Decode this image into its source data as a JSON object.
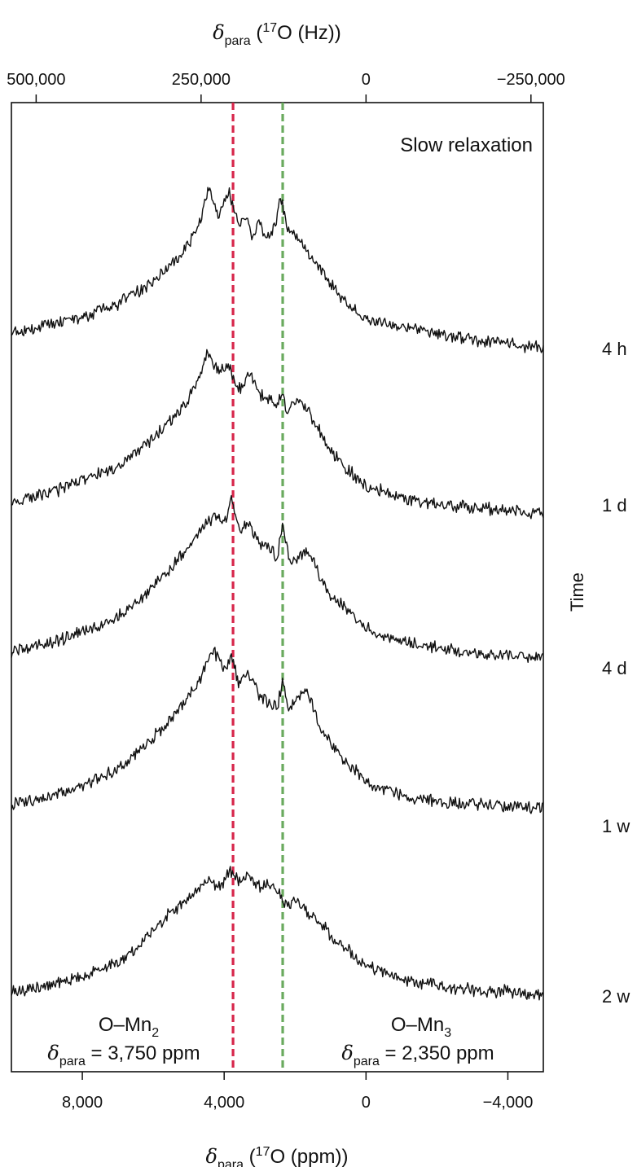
{
  "chart_data": {
    "type": "line",
    "title": "",
    "panel_label": "Slow relaxation",
    "x_bottom": {
      "label_symbol": "δ",
      "label_sub": "para",
      "label_pre": " (",
      "label_sup": "17",
      "label_post": "O (ppm))",
      "ticks": [
        8000,
        4000,
        0,
        -4000
      ],
      "tick_labels": [
        "8,000",
        "4,000",
        "0",
        "−4,000"
      ],
      "range": [
        10000,
        -5000
      ],
      "reversed": true
    },
    "x_top": {
      "label_symbol": "δ",
      "label_sub": "para",
      "label_pre": " (",
      "label_sup": "17",
      "label_post": "O (Hz))",
      "ticks": [
        500000,
        250000,
        0,
        -250000
      ],
      "tick_labels": [
        "500,000",
        "250,000",
        "0",
        "−250,000"
      ]
    },
    "y_axis": {
      "label": "Time",
      "direction": "down"
    },
    "series": [
      {
        "name": "4 h",
        "x": [
          10000,
          9000,
          8000,
          7000,
          6500,
          6000,
          5500,
          5000,
          4700,
          4450,
          4200,
          3850,
          3600,
          3400,
          3200,
          3000,
          2800,
          2550,
          2400,
          2200,
          2000,
          1700,
          1300,
          1000,
          500,
          0,
          -1000,
          -2000,
          -3000,
          -4000,
          -5000
        ],
        "y": [
          0.0,
          0.04,
          0.08,
          0.15,
          0.21,
          0.27,
          0.36,
          0.47,
          0.57,
          0.78,
          0.62,
          0.75,
          0.57,
          0.62,
          0.52,
          0.58,
          0.5,
          0.58,
          0.72,
          0.55,
          0.52,
          0.44,
          0.34,
          0.26,
          0.15,
          0.07,
          0.03,
          -0.01,
          -0.04,
          -0.06,
          -0.08
        ]
      },
      {
        "name": "1 d",
        "x": [
          10000,
          9000,
          8000,
          7000,
          6500,
          6000,
          5500,
          5000,
          4700,
          4450,
          4200,
          3850,
          3600,
          3300,
          3000,
          2750,
          2500,
          2350,
          2200,
          2000,
          1700,
          1300,
          1000,
          500,
          0,
          -1000,
          -2000,
          -3000,
          -4000,
          -5000
        ],
        "y": [
          0.0,
          0.05,
          0.12,
          0.2,
          0.27,
          0.35,
          0.44,
          0.56,
          0.68,
          0.82,
          0.7,
          0.74,
          0.6,
          0.7,
          0.58,
          0.55,
          0.53,
          0.58,
          0.48,
          0.55,
          0.52,
          0.38,
          0.28,
          0.18,
          0.09,
          0.03,
          -0.01,
          -0.02,
          -0.04,
          -0.05
        ]
      },
      {
        "name": "4 d",
        "x": [
          10000,
          9000,
          8000,
          7000,
          6500,
          6000,
          5500,
          5000,
          4700,
          4300,
          3950,
          3800,
          3600,
          3300,
          3000,
          2700,
          2500,
          2350,
          2200,
          2000,
          1700,
          1300,
          1000,
          500,
          0,
          -1000,
          -2000,
          -3000,
          -4000,
          -5000
        ],
        "y": [
          0.0,
          0.04,
          0.1,
          0.18,
          0.26,
          0.34,
          0.44,
          0.56,
          0.64,
          0.72,
          0.7,
          0.82,
          0.65,
          0.68,
          0.58,
          0.55,
          0.5,
          0.68,
          0.52,
          0.48,
          0.55,
          0.4,
          0.3,
          0.22,
          0.12,
          0.05,
          0.02,
          -0.01,
          -0.02,
          -0.03
        ]
      },
      {
        "name": "1 w",
        "x": [
          10000,
          9000,
          8000,
          7000,
          6500,
          6000,
          5500,
          5000,
          4700,
          4300,
          3950,
          3800,
          3600,
          3300,
          3000,
          2700,
          2500,
          2350,
          2200,
          2000,
          1700,
          1300,
          1000,
          500,
          0,
          -1000,
          -2000,
          -3000,
          -4000,
          -5000
        ],
        "y": [
          0.0,
          0.04,
          0.1,
          0.19,
          0.27,
          0.36,
          0.46,
          0.58,
          0.66,
          0.82,
          0.72,
          0.8,
          0.64,
          0.7,
          0.58,
          0.54,
          0.52,
          0.66,
          0.5,
          0.54,
          0.62,
          0.42,
          0.32,
          0.22,
          0.12,
          0.05,
          0.02,
          0.0,
          -0.01,
          -0.02
        ]
      },
      {
        "name": "2 w",
        "x": [
          10000,
          9000,
          8000,
          7000,
          6500,
          6000,
          5500,
          5000,
          4700,
          4400,
          4100,
          3850,
          3600,
          3300,
          3000,
          2700,
          2500,
          2350,
          2200,
          2000,
          1700,
          1300,
          1000,
          500,
          0,
          -1000,
          -2000,
          -3000,
          -4000,
          -5000
        ],
        "y": [
          0.0,
          0.03,
          0.08,
          0.16,
          0.22,
          0.34,
          0.42,
          0.5,
          0.56,
          0.6,
          0.56,
          0.64,
          0.6,
          0.62,
          0.56,
          0.58,
          0.54,
          0.48,
          0.46,
          0.5,
          0.44,
          0.38,
          0.3,
          0.22,
          0.14,
          0.07,
          0.03,
          0.01,
          0.0,
          -0.01
        ]
      }
    ],
    "reference_lines": [
      {
        "x": 3750,
        "color": "#d7264a",
        "style": "dashed"
      },
      {
        "x": 2350,
        "color": "#6aaa5e",
        "style": "dashed"
      }
    ],
    "annotations": [
      {
        "site": "O–Mn",
        "site_sub": "2",
        "delta": "δ",
        "delta_sub": "para",
        "value": " = 3,750 ppm"
      },
      {
        "site": "O–Mn",
        "site_sub": "3",
        "delta": "δ",
        "delta_sub": "para",
        "value": " = 2,350 ppm"
      }
    ],
    "grid": false,
    "legend": "none",
    "colors": {
      "trace": "#111111",
      "frame": "#111111"
    }
  }
}
